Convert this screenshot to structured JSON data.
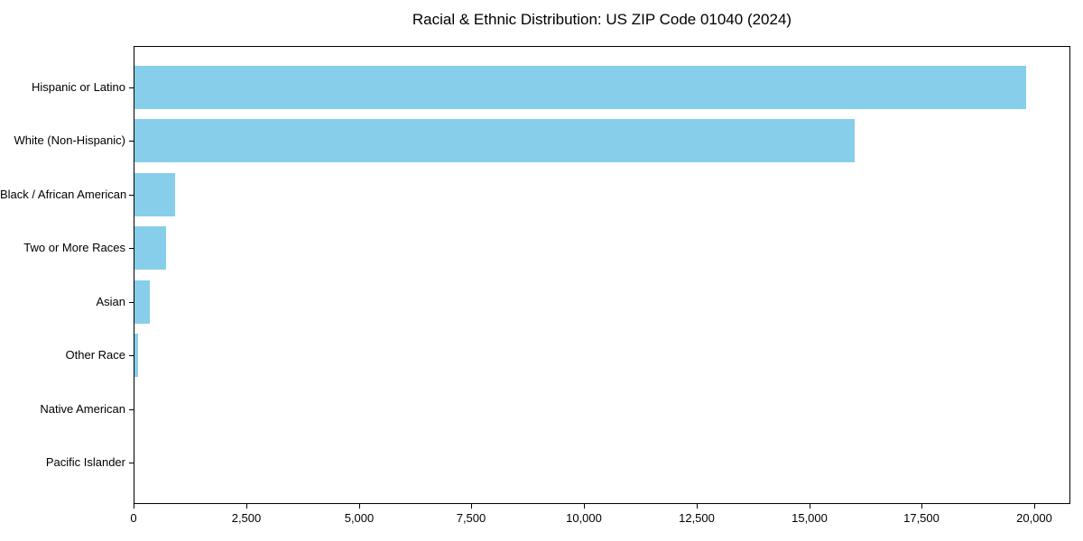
{
  "chart_data": {
    "type": "bar",
    "orientation": "horizontal",
    "title": "Racial & Ethnic Distribution: US ZIP Code 01040 (2024)",
    "categories": [
      "Hispanic or Latino",
      "White (Non-Hispanic)",
      "Black / African American",
      "Two or More Races",
      "Asian",
      "Other Race",
      "Native American",
      "Pacific Islander"
    ],
    "values": [
      19800,
      16000,
      910,
      710,
      350,
      90,
      0,
      0
    ],
    "xlabel": "",
    "ylabel": "",
    "xlim": [
      0,
      20800
    ],
    "x_ticks": [
      0,
      2500,
      5000,
      7500,
      10000,
      12500,
      15000,
      17500,
      20000
    ],
    "x_tick_labels": [
      "0",
      "2,500",
      "5,000",
      "7,500",
      "10,000",
      "12,500",
      "15,000",
      "17,500",
      "20,000"
    ],
    "bar_color": "#87CEEB",
    "axis_color": "#000000",
    "background_color": "#ffffff",
    "grid": false,
    "legend": null
  }
}
